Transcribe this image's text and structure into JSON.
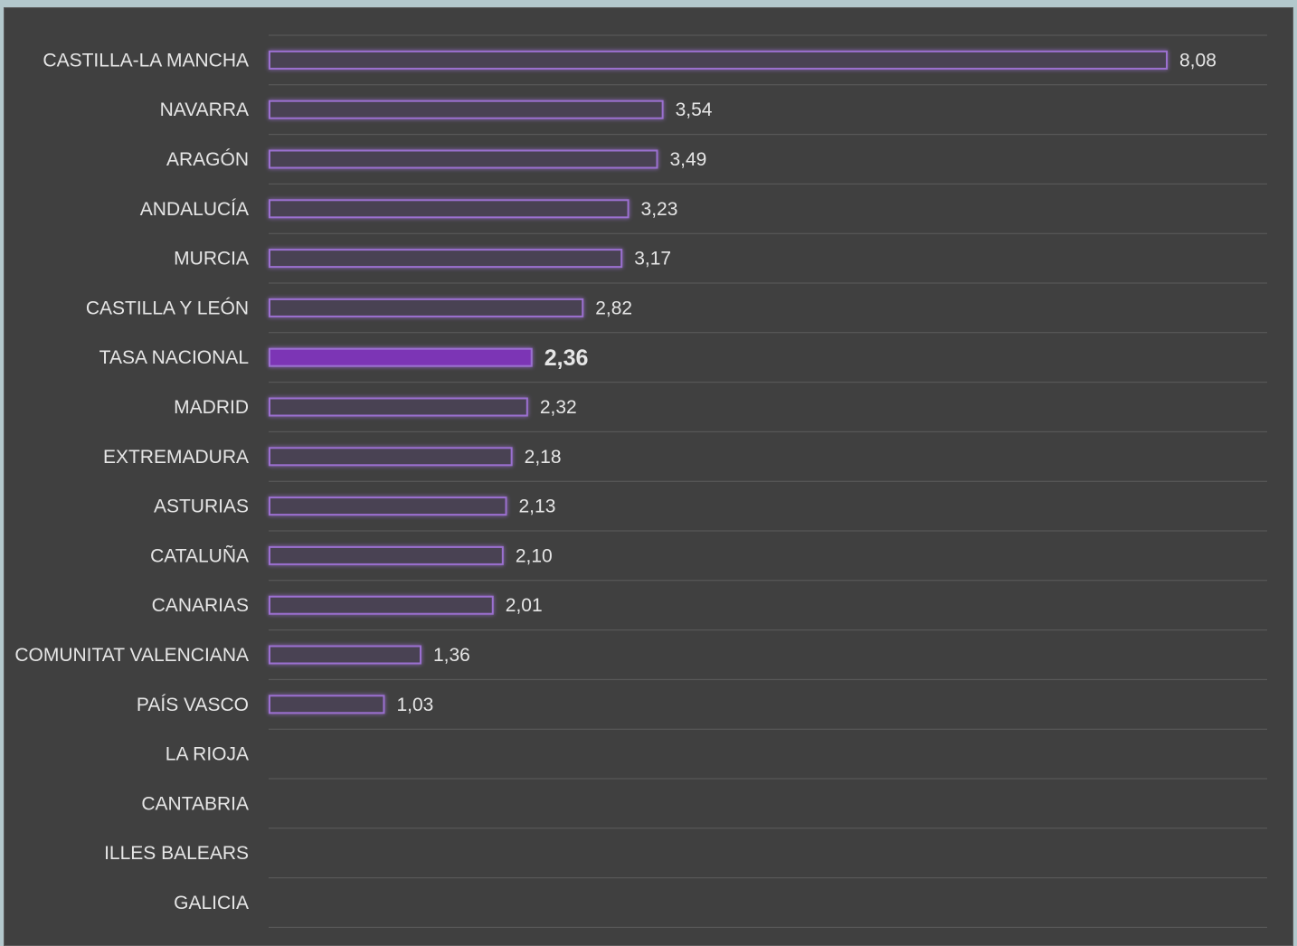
{
  "chart_data": {
    "type": "bar",
    "orientation": "horizontal",
    "categories": [
      "CASTILLA-LA MANCHA",
      "NAVARRA",
      "ARAGÓN",
      "ANDALUCÍA",
      "MURCIA",
      "CASTILLA Y LEÓN",
      "TASA NACIONAL",
      "MADRID",
      "EXTREMADURA",
      "ASTURIAS",
      "CATALUÑA",
      "CANARIAS",
      "COMUNITAT VALENCIANA",
      "PAÍS VASCO",
      "LA RIOJA",
      "CANTABRIA",
      "ILLES BALEARS",
      "GALICIA"
    ],
    "values": [
      8.08,
      3.54,
      3.49,
      3.23,
      3.17,
      2.82,
      2.36,
      2.32,
      2.18,
      2.13,
      2.1,
      2.01,
      1.36,
      1.03,
      null,
      null,
      null,
      null
    ],
    "value_labels": [
      "8,08",
      "3,54",
      "3,49",
      "3,23",
      "3,17",
      "2,82",
      "2,36",
      "2,32",
      "2,18",
      "2,13",
      "2,10",
      "2,01",
      "1,36",
      "1,03",
      "",
      "",
      "",
      ""
    ],
    "highlight_category": "TASA NACIONAL",
    "xlim": [
      0,
      8.08
    ],
    "title": "",
    "xlabel": "",
    "ylabel": "",
    "grid": true,
    "legend": "none",
    "colors": {
      "background": "#404040",
      "frame": "#b3c8cc",
      "bar_outline": "#9b6fd0",
      "bar_fill": "#4a4353",
      "highlight_fill": "#7b34b5",
      "text": "#e6e6e6",
      "gridline": "#5c5c5c"
    }
  }
}
